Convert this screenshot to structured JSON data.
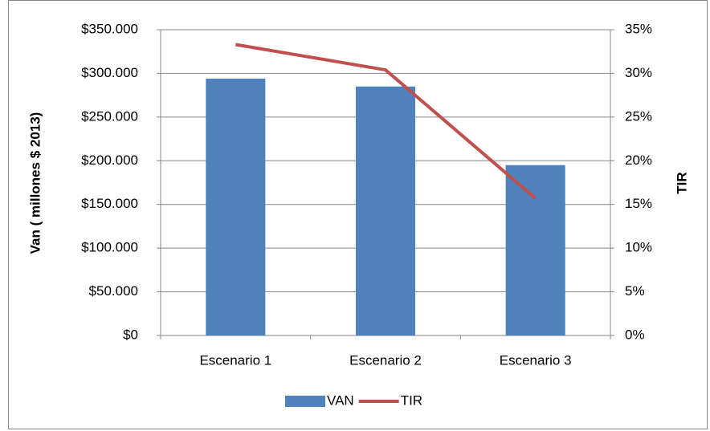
{
  "chart_data": {
    "type": "bar_line",
    "categories": [
      "Escenario 1",
      "Escenario 2",
      "Escenario 3"
    ],
    "series": [
      {
        "name": "VAN",
        "color": "#4f81bd",
        "type": "bar",
        "values": [
          294000,
          285000,
          195000
        ]
      },
      {
        "name": "TIR",
        "color": "#c0504d",
        "type": "line",
        "axis": "y2",
        "values": [
          33.3,
          30.4,
          15.7
        ]
      }
    ],
    "y_label": "Van ( millones $ 2013)",
    "y2_label": "TIR",
    "ylim": [
      0,
      350000
    ],
    "yticks": [
      {
        "value": 0,
        "label": "$0"
      },
      {
        "value": 50000,
        "label": "$50.000"
      },
      {
        "value": 100000,
        "label": "$100.000"
      },
      {
        "value": 150000,
        "label": "$150.000"
      },
      {
        "value": 200000,
        "label": "$200.000"
      },
      {
        "value": 250000,
        "label": "$250.000"
      },
      {
        "value": 300000,
        "label": "$300.000"
      },
      {
        "value": 350000,
        "label": "$350.000"
      }
    ],
    "y2lim": [
      0,
      35
    ],
    "y2ticks": [
      {
        "value": 0,
        "label": "0%"
      },
      {
        "value": 5,
        "label": "5%"
      },
      {
        "value": 10,
        "label": "10%"
      },
      {
        "value": 15,
        "label": "15%"
      },
      {
        "value": 20,
        "label": "20%"
      },
      {
        "value": 25,
        "label": "25%"
      },
      {
        "value": 30,
        "label": "30%"
      },
      {
        "value": 35,
        "label": "35%"
      }
    ],
    "grid": true,
    "legend": "bottom"
  }
}
